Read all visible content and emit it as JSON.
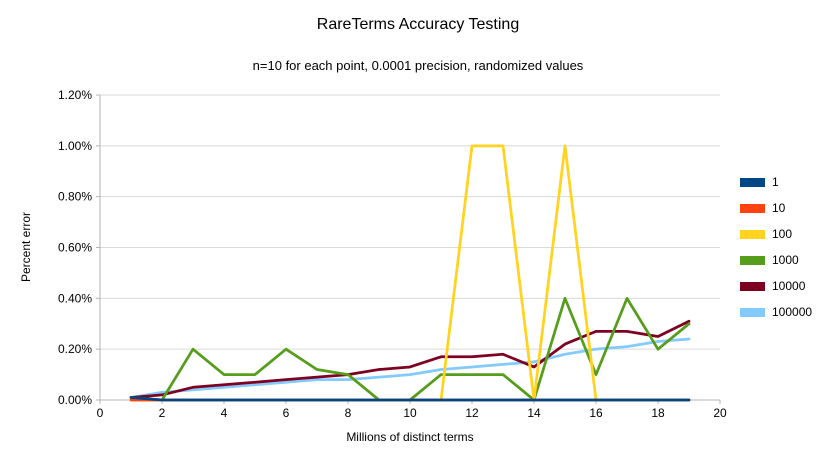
{
  "chart_data": {
    "type": "line",
    "title": "RareTerms Accuracy Testing",
    "subtitle": "n=10 for each point, 0.0001 precision, randomized values",
    "xlabel": "Millions of distinct terms",
    "ylabel": "Percent error",
    "xlim": [
      0,
      20
    ],
    "ylim": [
      0,
      1.2
    ],
    "grid": "horizontal",
    "legend_position": "right",
    "x": [
      1,
      2,
      3,
      4,
      5,
      6,
      7,
      8,
      9,
      10,
      11,
      12,
      13,
      14,
      15,
      16,
      17,
      18,
      19
    ],
    "series": [
      {
        "name": "1",
        "color": "#004586",
        "values": [
          0.01,
          0,
          0,
          0,
          0,
          0,
          0,
          0,
          0,
          0,
          0,
          0,
          0,
          0,
          0,
          0,
          0,
          0,
          0
        ]
      },
      {
        "name": "10",
        "color": "#FF420E",
        "values": [
          0,
          0,
          0,
          0,
          0,
          0,
          0,
          0,
          0,
          0,
          0,
          0,
          0,
          0,
          0,
          0,
          0,
          0,
          0
        ]
      },
      {
        "name": "100",
        "color": "#FFD320",
        "values": [
          0,
          0,
          0,
          0,
          0,
          0,
          0,
          0,
          0,
          0,
          0,
          1.0,
          1.0,
          0,
          1.0,
          0,
          0,
          0,
          0
        ]
      },
      {
        "name": "1000",
        "color": "#579D1C",
        "values": [
          0.01,
          0,
          0.2,
          0.1,
          0.1,
          0.2,
          0.12,
          0.1,
          0,
          0,
          0.1,
          0.1,
          0.1,
          0,
          0.4,
          0.1,
          0.4,
          0.2,
          0.3
        ]
      },
      {
        "name": "10000",
        "color": "#7E0021",
        "values": [
          0.01,
          0.02,
          0.05,
          0.06,
          0.07,
          0.08,
          0.09,
          0.1,
          0.12,
          0.13,
          0.17,
          0.17,
          0.18,
          0.13,
          0.22,
          0.27,
          0.27,
          0.25,
          0.31
        ]
      },
      {
        "name": "100000",
        "color": "#83CAFF",
        "values": [
          0.01,
          0.03,
          0.04,
          0.05,
          0.06,
          0.07,
          0.08,
          0.08,
          0.09,
          0.1,
          0.12,
          0.13,
          0.14,
          0.15,
          0.18,
          0.2,
          0.21,
          0.23,
          0.24
        ]
      }
    ],
    "y_ticks": [
      {
        "value": 0.0,
        "label": "0.00%"
      },
      {
        "value": 0.2,
        "label": "0.20%"
      },
      {
        "value": 0.4,
        "label": "0.40%"
      },
      {
        "value": 0.6,
        "label": "0.60%"
      },
      {
        "value": 0.8,
        "label": "0.80%"
      },
      {
        "value": 1.0,
        "label": "1.00%"
      },
      {
        "value": 1.2,
        "label": "1.20%"
      }
    ],
    "x_ticks": [
      {
        "value": 0,
        "label": "0"
      },
      {
        "value": 2,
        "label": "2"
      },
      {
        "value": 4,
        "label": "4"
      },
      {
        "value": 6,
        "label": "6"
      },
      {
        "value": 8,
        "label": "8"
      },
      {
        "value": 10,
        "label": "10"
      },
      {
        "value": 12,
        "label": "12"
      },
      {
        "value": 14,
        "label": "14"
      },
      {
        "value": 16,
        "label": "16"
      },
      {
        "value": 18,
        "label": "18"
      },
      {
        "value": 20,
        "label": "20"
      }
    ],
    "colors": {
      "background": "#ffffff",
      "grid": "#d9d9d9",
      "axis": "#b3b3b3",
      "text": "#000000"
    }
  }
}
